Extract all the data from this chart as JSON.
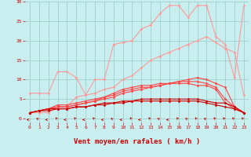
{
  "background_color": "#c8eef0",
  "grid_color": "#a0d0c8",
  "xlabel": "Vent moyen/en rafales ( km/h )",
  "xlim": [
    -0.5,
    23.5
  ],
  "ylim": [
    -1,
    30
  ],
  "yticks": [
    0,
    5,
    10,
    15,
    20,
    25,
    30
  ],
  "xticks": [
    0,
    1,
    2,
    3,
    4,
    5,
    6,
    7,
    8,
    9,
    10,
    11,
    12,
    13,
    14,
    15,
    16,
    17,
    18,
    19,
    20,
    21,
    22,
    23
  ],
  "series": [
    {
      "color": "#ff9999",
      "x": [
        0,
        1,
        2,
        3,
        4,
        5,
        6,
        7,
        8,
        9,
        10,
        11,
        12,
        13,
        14,
        15,
        16,
        17,
        18,
        19,
        20,
        21,
        22,
        23
      ],
      "y": [
        6.5,
        6.5,
        6.5,
        12,
        12,
        10.5,
        6,
        10,
        10,
        19,
        19.5,
        20,
        23,
        24,
        27,
        29,
        29,
        26,
        29,
        29,
        21,
        19,
        10.5,
        29
      ],
      "marker": "D",
      "markersize": 1.5,
      "linewidth": 0.8
    },
    {
      "color": "#ff9999",
      "x": [
        0,
        1,
        2,
        3,
        4,
        5,
        6,
        7,
        8,
        9,
        10,
        11,
        12,
        13,
        14,
        15,
        16,
        17,
        18,
        19,
        20,
        21,
        22,
        23
      ],
      "y": [
        1.5,
        1.5,
        1.5,
        3,
        3,
        5.5,
        6,
        6.5,
        7.5,
        8,
        10,
        11,
        13,
        15,
        16,
        17,
        18,
        19,
        20,
        21,
        19.5,
        18,
        17,
        6
      ],
      "marker": "D",
      "markersize": 1.5,
      "linewidth": 0.8
    },
    {
      "color": "#ff4444",
      "x": [
        0,
        1,
        2,
        3,
        4,
        5,
        6,
        7,
        8,
        9,
        10,
        11,
        12,
        13,
        14,
        15,
        16,
        17,
        18,
        19,
        20,
        21,
        22,
        23
      ],
      "y": [
        1.5,
        2,
        2.5,
        3.5,
        3.5,
        4,
        4.5,
        5,
        5.5,
        6.5,
        7.5,
        8,
        8.5,
        8.5,
        9,
        9,
        9.5,
        9.5,
        9.5,
        9,
        8,
        5,
        3,
        1.5
      ],
      "marker": "D",
      "markersize": 1.5,
      "linewidth": 0.8
    },
    {
      "color": "#ff4444",
      "x": [
        0,
        1,
        2,
        3,
        4,
        5,
        6,
        7,
        8,
        9,
        10,
        11,
        12,
        13,
        14,
        15,
        16,
        17,
        18,
        19,
        20,
        21,
        22,
        23
      ],
      "y": [
        1.5,
        2,
        2.5,
        3,
        3,
        3.5,
        4,
        4.5,
        5.5,
        6,
        7,
        7.5,
        8,
        8,
        8.5,
        9,
        9,
        9,
        8.5,
        8.5,
        7.5,
        4,
        2.5,
        1.5
      ],
      "marker": "D",
      "markersize": 1.5,
      "linewidth": 0.8
    },
    {
      "color": "#ff4444",
      "x": [
        0,
        1,
        2,
        3,
        4,
        5,
        6,
        7,
        8,
        9,
        10,
        11,
        12,
        13,
        14,
        15,
        16,
        17,
        18,
        19,
        20,
        21,
        22,
        23
      ],
      "y": [
        1.5,
        2,
        2.5,
        3,
        3,
        3.5,
        4,
        4.5,
        5,
        5.5,
        6.5,
        7,
        7.5,
        8,
        8.5,
        9,
        9.5,
        10,
        10.5,
        10,
        9,
        8,
        3,
        1.5
      ],
      "marker": "D",
      "markersize": 1.5,
      "linewidth": 0.8
    },
    {
      "color": "#cc0000",
      "x": [
        0,
        1,
        2,
        3,
        4,
        5,
        6,
        7,
        8,
        9,
        10,
        11,
        12,
        13,
        14,
        15,
        16,
        17,
        18,
        19,
        20,
        21,
        22,
        23
      ],
      "y": [
        1.5,
        2,
        2.5,
        2.5,
        2.5,
        3,
        3,
        3.5,
        4,
        4,
        4.5,
        4.5,
        5,
        5,
        5,
        5,
        5,
        5,
        5,
        4.5,
        4,
        4,
        3,
        1.5
      ],
      "marker": "D",
      "markersize": 1.5,
      "linewidth": 0.8
    },
    {
      "color": "#cc0000",
      "x": [
        0,
        1,
        2,
        3,
        4,
        5,
        6,
        7,
        8,
        9,
        10,
        11,
        12,
        13,
        14,
        15,
        16,
        17,
        18,
        19,
        20,
        21,
        22,
        23
      ],
      "y": [
        1.5,
        2,
        2,
        2.5,
        2.5,
        3,
        3,
        3.5,
        3.5,
        4,
        4,
        4.5,
        4.5,
        4.5,
        4.5,
        4.5,
        4.5,
        4.5,
        4.5,
        4,
        3.5,
        3,
        2.5,
        1.5
      ],
      "marker": "D",
      "markersize": 1.5,
      "linewidth": 0.8
    }
  ],
  "arrow_angles": [
    270,
    240,
    270,
    225,
    270,
    225,
    270,
    225,
    270,
    240,
    270,
    225,
    270,
    225,
    240,
    270,
    225,
    240,
    225,
    240,
    225,
    225,
    225,
    225
  ],
  "arrow_color": "#cc0000",
  "tick_label_color": "#cc0000",
  "label_color": "#cc0000",
  "tick_fontsize": 4.5,
  "label_fontsize": 6.5
}
